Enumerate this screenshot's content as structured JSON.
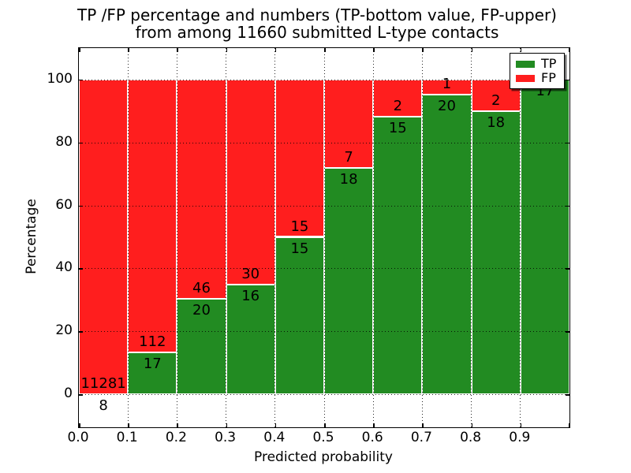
{
  "chart_data": {
    "type": "bar",
    "stacked": true,
    "title_lines": [
      "TP /FP percentage and numbers (TP-bottom value, FP-upper)",
      "from among 11660 submitted L-type contacts"
    ],
    "xlabel": "Predicted probability",
    "ylabel": "Percentage",
    "x_tick_labels": [
      "0.0",
      "0.1",
      "0.2",
      "0.3",
      "0.4",
      "0.5",
      "0.6",
      "0.7",
      "0.8",
      "0.9"
    ],
    "y_ticks": [
      0,
      20,
      40,
      60,
      80,
      100
    ],
    "xlim": [
      0,
      1
    ],
    "ylim": [
      -10.5,
      110
    ],
    "grid": "dotted",
    "legend_position": "upper right",
    "legend": [
      {
        "label": "TP",
        "color": "#228b22"
      },
      {
        "label": "FP",
        "color": "#ff1e1e"
      }
    ],
    "total_contacts": 11660,
    "bins": [
      {
        "x0": 0.0,
        "x1": 0.1,
        "tp": 8,
        "fp": 11281,
        "tp_pct": 0.07,
        "fp_pct": 99.93
      },
      {
        "x0": 0.1,
        "x1": 0.2,
        "tp": 17,
        "fp": 112,
        "tp_pct": 13.18,
        "fp_pct": 86.82
      },
      {
        "x0": 0.2,
        "x1": 0.3,
        "tp": 20,
        "fp": 46,
        "tp_pct": 30.3,
        "fp_pct": 69.7
      },
      {
        "x0": 0.3,
        "x1": 0.4,
        "tp": 16,
        "fp": 30,
        "tp_pct": 34.78,
        "fp_pct": 65.22
      },
      {
        "x0": 0.4,
        "x1": 0.5,
        "tp": 15,
        "fp": 15,
        "tp_pct": 50.0,
        "fp_pct": 50.0
      },
      {
        "x0": 0.5,
        "x1": 0.6,
        "tp": 18,
        "fp": 7,
        "tp_pct": 72.0,
        "fp_pct": 28.0
      },
      {
        "x0": 0.6,
        "x1": 0.7,
        "tp": 15,
        "fp": 2,
        "tp_pct": 88.24,
        "fp_pct": 11.76
      },
      {
        "x0": 0.7,
        "x1": 0.8,
        "tp": 20,
        "fp": 1,
        "tp_pct": 95.24,
        "fp_pct": 4.76
      },
      {
        "x0": 0.8,
        "x1": 0.9,
        "tp": 18,
        "fp": 2,
        "tp_pct": 90.0,
        "fp_pct": 10.0
      },
      {
        "x0": 0.9,
        "x1": 1.0,
        "tp": 17,
        "fp": 0,
        "tp_pct": 100.0,
        "fp_pct": 0.0
      }
    ]
  }
}
